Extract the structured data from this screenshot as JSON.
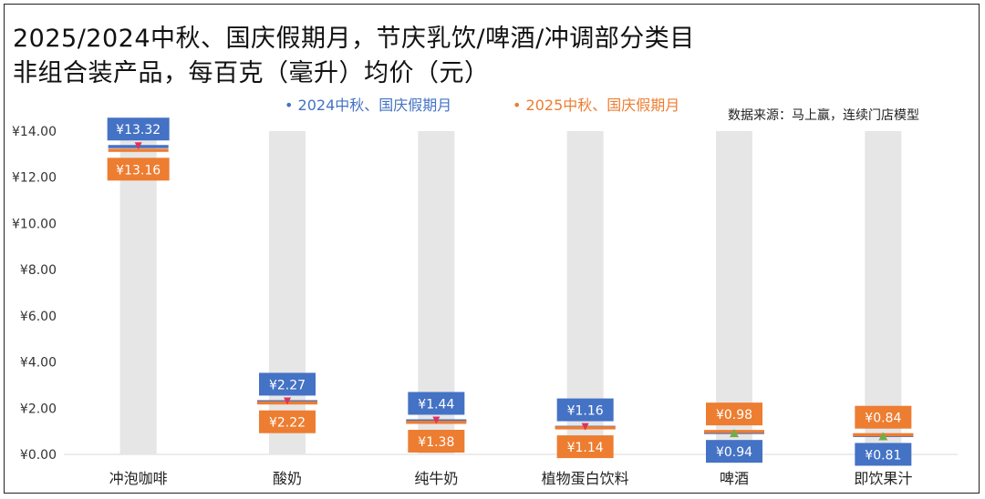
{
  "title_lines": [
    "2025/2024中秋、国庆假期月，节庆乳饮/啤酒/冲调部分类目",
    "非组合装产品，每百克（毫升）均价（元）"
  ],
  "source": "数据来源：马上赢，连续门店模型",
  "colors": {
    "s2024": "#4472C4",
    "s2025": "#ED7D31",
    "column_bg": "#E7E6E6",
    "marker_red": "#E0315A",
    "marker_green": "#70AD47"
  },
  "chart_data": {
    "type": "bar",
    "categories": [
      "冲泡咖啡",
      "酸奶",
      "纯牛奶",
      "植物蛋白饮料",
      "啤酒",
      "即饮果汁"
    ],
    "series": [
      {
        "name": "2024中秋、国庆假期月",
        "values": [
          13.32,
          2.27,
          1.44,
          1.16,
          0.94,
          0.81
        ],
        "labels": [
          "¥13.32",
          "¥2.27",
          "¥1.44",
          "¥1.16",
          "¥0.94",
          "¥0.81"
        ]
      },
      {
        "name": "2025中秋、国庆假期月",
        "values": [
          13.16,
          2.22,
          1.38,
          1.14,
          0.98,
          0.84
        ],
        "labels": [
          "¥13.16",
          "¥2.22",
          "¥1.38",
          "¥1.14",
          "¥0.98",
          "¥0.84"
        ]
      }
    ],
    "ylim": [
      0,
      14
    ],
    "yticks": [
      {
        "value": 0,
        "label": "¥0.00"
      },
      {
        "value": 2,
        "label": "¥2.00"
      },
      {
        "value": 4,
        "label": "¥4.00"
      },
      {
        "value": 6,
        "label": "¥6.00"
      },
      {
        "value": 8,
        "label": "¥8.00"
      },
      {
        "value": 10,
        "label": "¥10.00"
      },
      {
        "value": 12,
        "label": "¥12.00"
      },
      {
        "value": 14,
        "label": "¥14.00"
      }
    ],
    "grid": false,
    "legend": "top"
  }
}
